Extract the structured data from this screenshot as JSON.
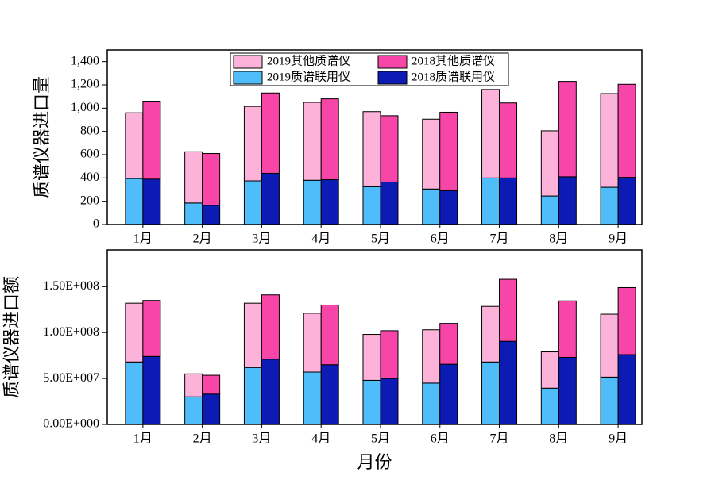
{
  "chart_data": [
    {
      "type": "stacked-bar",
      "y_label": "质谱仪器进口量",
      "categories": [
        "1月",
        "2月",
        "3月",
        "4月",
        "5月",
        "6月",
        "7月",
        "8月",
        "9月"
      ],
      "ylim": [
        0,
        1500
      ],
      "yticks": [
        0,
        200,
        400,
        600,
        800,
        {
          "value": 1000,
          "label": "1,000"
        },
        {
          "value": 1200,
          "label": "1,200"
        },
        {
          "value": 1400,
          "label": "1,400"
        }
      ],
      "legend": true,
      "stacks": [
        {
          "series": [
            {
              "name": "2019质谱联用仪",
              "color": "#4fbdf9",
              "values": [
                395,
                185,
                375,
                380,
                325,
                305,
                400,
                245,
                320
              ]
            },
            {
              "name": "2019其他质谱仪",
              "color": "#fdb3d9",
              "values": [
                565,
                440,
                640,
                670,
                645,
                600,
                760,
                560,
                805
              ]
            }
          ]
        },
        {
          "series": [
            {
              "name": "2018质谱联用仪",
              "color": "#0c1bb4",
              "values": [
                390,
                165,
                440,
                385,
                365,
                290,
                400,
                410,
                405
              ]
            },
            {
              "name": "2018其他质谱仪",
              "color": "#f845a8",
              "values": [
                670,
                445,
                690,
                695,
                570,
                675,
                645,
                820,
                800
              ]
            }
          ]
        }
      ]
    },
    {
      "type": "stacked-bar",
      "y_label": "质谱仪器进口额",
      "x_label": "月份",
      "categories": [
        "1月",
        "2月",
        "3月",
        "4月",
        "5月",
        "6月",
        "7月",
        "8月",
        "9月"
      ],
      "ylim": [
        0,
        190000000
      ],
      "yticks": [
        {
          "value": 0,
          "label": "0.00E+000"
        },
        {
          "value": 50000000,
          "label": "5.00E+007"
        },
        {
          "value": 100000000,
          "label": "1.00E+008"
        },
        {
          "value": 150000000,
          "label": "1.50E+008"
        }
      ],
      "legend": false,
      "stacks": [
        {
          "series": [
            {
              "color": "#4fbdf9",
              "values": [
                68000000,
                30000000,
                62000000,
                57000000,
                48000000,
                45000000,
                68000000,
                39500000,
                51500000
              ]
            },
            {
              "color": "#fdb3d9",
              "values": [
                64000000,
                25000000,
                70000000,
                64000000,
                50000000,
                58000000,
                60500000,
                39500000,
                68500000
              ]
            }
          ]
        },
        {
          "series": [
            {
              "color": "#0c1bb4",
              "values": [
                74000000,
                33000000,
                71000000,
                65000000,
                50000000,
                65500000,
                90500000,
                73000000,
                76000000
              ]
            },
            {
              "color": "#f845a8",
              "values": [
                61000000,
                20500000,
                70000000,
                65000000,
                52000000,
                44500000,
                67500000,
                61500000,
                73000000
              ]
            }
          ]
        }
      ]
    }
  ]
}
